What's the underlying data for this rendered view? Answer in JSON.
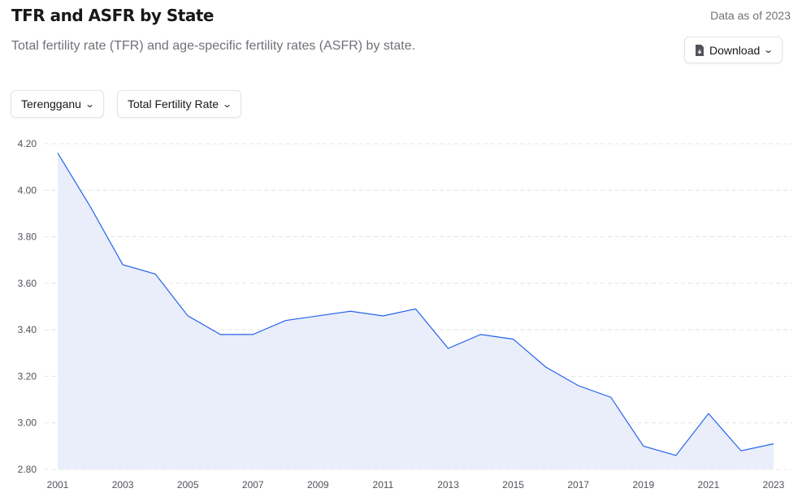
{
  "header": {
    "title": "TFR and ASFR by State",
    "subtitle": "Total fertility rate (TFR) and age-specific fertility rates (ASFR) by state.",
    "data_as_of": "Data as of 2023"
  },
  "download": {
    "label": "Download",
    "icon": "file-download-icon"
  },
  "filters": {
    "state": "Terengganu",
    "measure": "Total Fertility Rate"
  },
  "colors": {
    "line": "#2563eb",
    "area": "#eaeefa",
    "grid": "#e4e4e7"
  },
  "chart_data": {
    "type": "area",
    "x": [
      2001,
      2002,
      2003,
      2004,
      2005,
      2006,
      2007,
      2008,
      2009,
      2010,
      2011,
      2012,
      2013,
      2014,
      2015,
      2016,
      2017,
      2018,
      2019,
      2020,
      2021,
      2022,
      2023
    ],
    "values": [
      4.16,
      3.93,
      3.68,
      3.64,
      3.46,
      3.38,
      3.38,
      3.44,
      3.46,
      3.48,
      3.46,
      3.49,
      3.32,
      3.38,
      3.36,
      3.24,
      3.16,
      3.11,
      2.9,
      2.86,
      3.04,
      2.88,
      2.91
    ],
    "ylim": [
      2.8,
      4.2
    ],
    "yticks": [
      "2.80",
      "3.00",
      "3.20",
      "3.40",
      "3.60",
      "3.80",
      "4.00",
      "4.20"
    ],
    "xticks": [
      "2001",
      "2003",
      "2005",
      "2007",
      "2009",
      "2011",
      "2013",
      "2015",
      "2017",
      "2019",
      "2021",
      "2023"
    ],
    "grid": true
  }
}
